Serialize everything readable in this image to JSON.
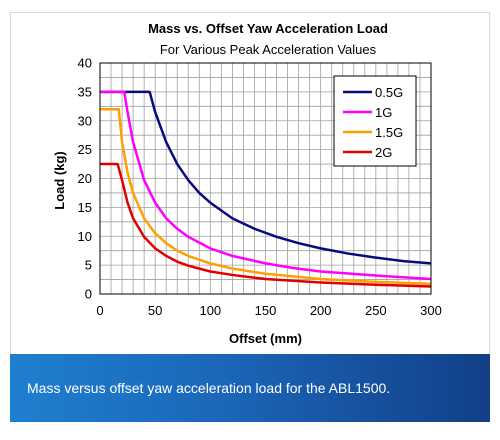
{
  "caption": "Mass versus offset yaw acceleration load for the ABL1500.",
  "colors": {
    "grid": "#a0a0a0",
    "caption_bg_start": "#1f7fd0",
    "caption_bg_end": "#123f88"
  },
  "chart_data": {
    "type": "line",
    "title": "Mass vs. Offset Yaw Acceleration Load",
    "subtitle": "For Various Peak Acceleration Values",
    "xlabel": "Offset (mm)",
    "ylabel": "Load (kg)",
    "xlim": [
      0,
      300
    ],
    "ylim": [
      0,
      40
    ],
    "xticks": [
      0,
      50,
      100,
      150,
      200,
      250,
      300
    ],
    "yticks": [
      0,
      5,
      10,
      15,
      20,
      25,
      30,
      35,
      40
    ],
    "grid": true,
    "legend_position": "top-right",
    "series": [
      {
        "name": "0.5G",
        "color": "#0a0a80",
        "points": [
          [
            0,
            35
          ],
          [
            45,
            35
          ],
          [
            50,
            31.5
          ],
          [
            60,
            26.3
          ],
          [
            70,
            22.5
          ],
          [
            80,
            19.7
          ],
          [
            90,
            17.5
          ],
          [
            100,
            15.8
          ],
          [
            120,
            13.1
          ],
          [
            140,
            11.3
          ],
          [
            160,
            9.9
          ],
          [
            180,
            8.8
          ],
          [
            200,
            7.9
          ],
          [
            225,
            7.0
          ],
          [
            250,
            6.3
          ],
          [
            275,
            5.7
          ],
          [
            300,
            5.3
          ]
        ]
      },
      {
        "name": "1G",
        "color": "#ff00ff",
        "points": [
          [
            0,
            35
          ],
          [
            22,
            35
          ],
          [
            25,
            31.5
          ],
          [
            30,
            26.3
          ],
          [
            40,
            19.7
          ],
          [
            50,
            15.8
          ],
          [
            60,
            13.1
          ],
          [
            70,
            11.3
          ],
          [
            80,
            9.9
          ],
          [
            100,
            7.9
          ],
          [
            120,
            6.6
          ],
          [
            150,
            5.3
          ],
          [
            175,
            4.5
          ],
          [
            200,
            3.9
          ],
          [
            250,
            3.2
          ],
          [
            300,
            2.6
          ]
        ]
      },
      {
        "name": "1.5G",
        "color": "#ffa000",
        "points": [
          [
            0,
            32
          ],
          [
            17,
            32
          ],
          [
            20,
            26.3
          ],
          [
            25,
            21
          ],
          [
            30,
            17.5
          ],
          [
            40,
            13.1
          ],
          [
            50,
            10.5
          ],
          [
            60,
            8.8
          ],
          [
            70,
            7.5
          ],
          [
            80,
            6.6
          ],
          [
            100,
            5.3
          ],
          [
            120,
            4.4
          ],
          [
            150,
            3.5
          ],
          [
            200,
            2.6
          ],
          [
            250,
            2.1
          ],
          [
            300,
            1.75
          ]
        ]
      },
      {
        "name": "2G",
        "color": "#e00000",
        "points": [
          [
            0,
            22.5
          ],
          [
            16,
            22.5
          ],
          [
            20,
            19.7
          ],
          [
            25,
            15.8
          ],
          [
            30,
            13.1
          ],
          [
            40,
            9.9
          ],
          [
            50,
            7.9
          ],
          [
            60,
            6.6
          ],
          [
            70,
            5.6
          ],
          [
            80,
            4.9
          ],
          [
            100,
            3.9
          ],
          [
            120,
            3.3
          ],
          [
            150,
            2.6
          ],
          [
            200,
            2.0
          ],
          [
            250,
            1.6
          ],
          [
            300,
            1.3
          ]
        ]
      }
    ]
  }
}
